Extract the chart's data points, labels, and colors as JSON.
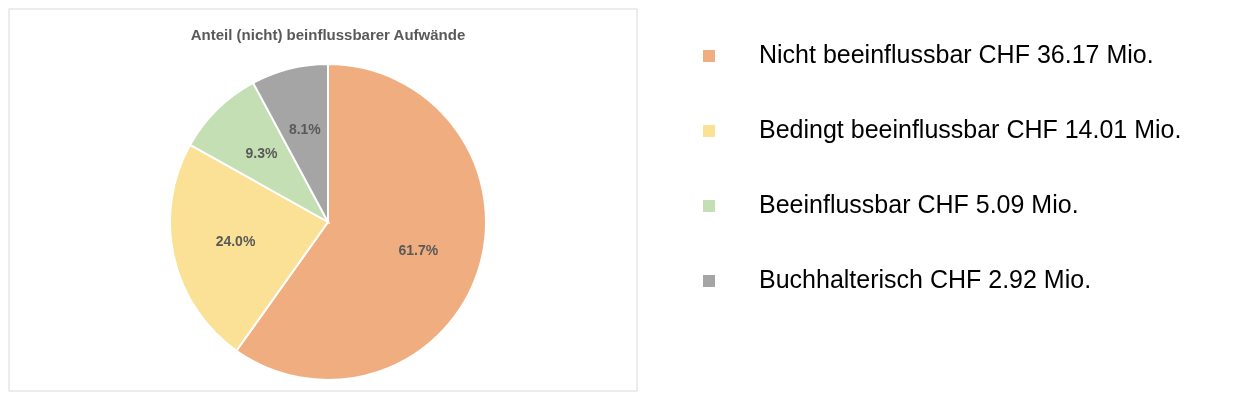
{
  "chart_data": {
    "type": "pie",
    "title": "Anteil (nicht) beinflussbarer Aufwände",
    "categories": [
      "Nicht beeinflussbar CHF 36.17 Mio.",
      "Bedingt beeinflussbar CHF 14.01 Mio.",
      "Beeinflussbar CHF 5.09 Mio.",
      "Buchhalterisch CHF 2.92 Mio."
    ],
    "values": [
      61.7,
      24.0,
      9.3,
      8.1
    ],
    "colors": [
      "#f0ae80",
      "#fae196",
      "#c5dfb4",
      "#a5a5a5"
    ],
    "value_labels": [
      "61.7%",
      "24.0%",
      "9.3%",
      "8.1%"
    ],
    "legend": "right"
  }
}
